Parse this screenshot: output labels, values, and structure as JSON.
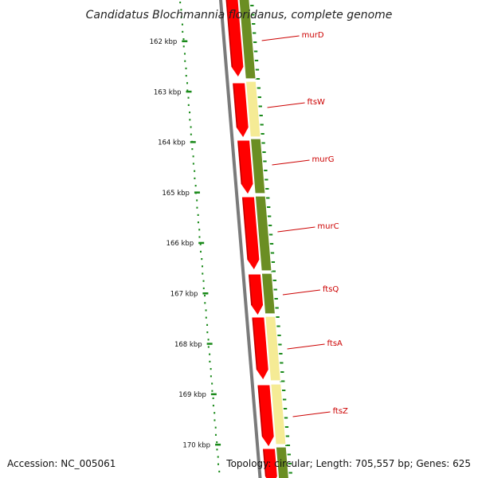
{
  "map": {
    "title": "Candidatus Blochmannia floridanus, complete genome",
    "accession": "Accession: NC_005061",
    "topology": "Topology: circular; Length: 705,557 bp; Genes: 625",
    "ticks": [
      "162 kbp",
      "163 kbp",
      "164 kbp",
      "165 kbp",
      "166 kbp",
      "167 kbp",
      "168 kbp",
      "169 kbp",
      "170 kbp"
    ],
    "genes": [
      "murD",
      "ftsW",
      "murG",
      "murC",
      "ftsQ",
      "ftsA",
      "ftsZ"
    ]
  },
  "colors": {
    "cds_forward": "#ff0000",
    "cog_dark_green": "#6b8e23",
    "cog_pale_yellow": "#f5eb95",
    "backbone": "#7a7a7a",
    "gc_skew_dots": "#1a8a1a",
    "label_line": "#cc0000"
  }
}
